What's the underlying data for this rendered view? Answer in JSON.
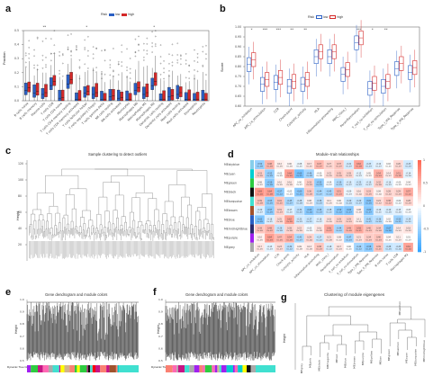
{
  "panels": {
    "a": {
      "label": "a",
      "legend_title": "Risk",
      "legend_items": [
        {
          "name": "low",
          "color": "#2a5fc4"
        },
        {
          "name": "high",
          "color": "#d42828"
        }
      ],
      "ylabel": "Fraction",
      "categories": [
        "B cells naive",
        "B cells memory",
        "Plasma cells",
        "T cells CD8",
        "T cells CD4 naive",
        "T cells CD4 memory resting",
        "T cells CD4 memory activated",
        "T cells follicular helper",
        "T cells regulatory (Tregs)",
        "T cells gamma delta",
        "NK cells resting",
        "NK cells activated",
        "Monocytes",
        "Macrophages M0",
        "Macrophages M1",
        "Macrophages M2",
        "Dendritic cells resting",
        "Dendritic cells activated",
        "Mast cells resting",
        "Mast cells activated",
        "Eosinophils",
        "Neutrophils"
      ],
      "sig": [
        "",
        "",
        "**",
        "",
        "",
        "",
        "",
        "*",
        "",
        "",
        "",
        "",
        "",
        "",
        "",
        "*",
        "",
        "",
        "",
        "",
        "",
        ""
      ],
      "yticks": [
        "0.0",
        "0.1",
        "0.2",
        "0.3",
        "0.4",
        "0.5"
      ]
    },
    "b": {
      "label": "b",
      "legend_title": "Risk",
      "legend_items": [
        {
          "name": "low",
          "color": "#2a5fc4"
        },
        {
          "name": "high",
          "color": "#d42828"
        }
      ],
      "ylabel": "Score",
      "categories": [
        "APC_co_inhibition",
        "APC_co_stimulation",
        "CCR",
        "Check-point",
        "Cytolytic_activity",
        "HLA",
        "Inflammation-promoting",
        "MHC_class_I",
        "Parainflammation",
        "T_cell_co-inhibition",
        "T_cell_co-stimulation",
        "Type_I_IFN_Reponse",
        "Type_II_IFN_Reponse"
      ],
      "sig": [
        "*",
        "***",
        "***",
        "**",
        "**",
        "",
        "",
        "",
        "***",
        "*",
        "**",
        "",
        ""
      ],
      "yticks": [
        "1.00",
        "0.95",
        "0.90",
        "0.85",
        "0.80",
        "0.75",
        "0.70",
        "0.65",
        "0.60"
      ]
    },
    "c": {
      "label": "c",
      "title": "Sample clustering to detect outliers",
      "ylabel": "Height",
      "yticks": [
        "120",
        "100",
        "80",
        "60",
        "40",
        "20"
      ]
    },
    "d": {
      "label": "d",
      "title": "Module−trait relationships",
      "modules": [
        "MEskyblue",
        "MEcyan",
        "MEgreen",
        "MEblack",
        "MEturquoise",
        "MEbrown",
        "MEblue",
        "MEmidnightblue",
        "MEpurple",
        "MEgrey"
      ],
      "module_colors": [
        "#87ceeb",
        "#00ced1",
        "#2ecc40",
        "#111111",
        "#40e0d0",
        "#a0522d",
        "#2a5fc4",
        "#2c2c6e",
        "#a020f0",
        "#aaaaaa"
      ],
      "traits": [
        "APC_co_inhibition",
        "APC_co_stimulation",
        "CCR",
        "Check-point",
        "Cytolytic_activity",
        "HLA",
        "Inflammation-promoting",
        "MHC_class_I",
        "Parainflammation",
        "T_cell_co-inhibition",
        "T_cell_co-stimulation",
        "Type_I_IFN_Reponse",
        "Type_II_IFN_Reponse",
        "B cells naive",
        "T cells CD8",
        "Macrophages M2"
      ],
      "colorbar_ticks": [
        "1",
        "0.5",
        "0",
        "-0.5",
        "-1"
      ]
    },
    "e": {
      "label": "e",
      "title": "Gene dendrogram and module colors",
      "ylabel": "Height",
      "rowlabel": "Dynamic Tree Cut",
      "yticks": [
        "1.0",
        "0.9",
        "0.8",
        "0.7",
        "0.6",
        "0.5"
      ]
    },
    "f": {
      "label": "f",
      "title": "Gene dendrogram and module colors",
      "ylabel": "Height",
      "rowlabel": "Dynamic Tree Cut",
      "yticks": [
        "1.0",
        "0.9",
        "0.8",
        "0.7",
        "0.6",
        "0.5"
      ]
    },
    "g": {
      "label": "g",
      "title": "Clustering of module eigengenes",
      "ylabel": "Height",
      "leaves": [
        "MEgrey",
        "MEpink",
        "MEblack",
        "MEmagenta",
        "MEred",
        "MEblue",
        "MEbrown",
        "MEpurple",
        "MEyellow",
        "MEtan",
        "MEgreen",
        "MEsalmon",
        "MEcyan",
        "MEturquoise",
        "MEmidnightblue"
      ],
      "top_leaf": "MEsalmon"
    }
  }
}
